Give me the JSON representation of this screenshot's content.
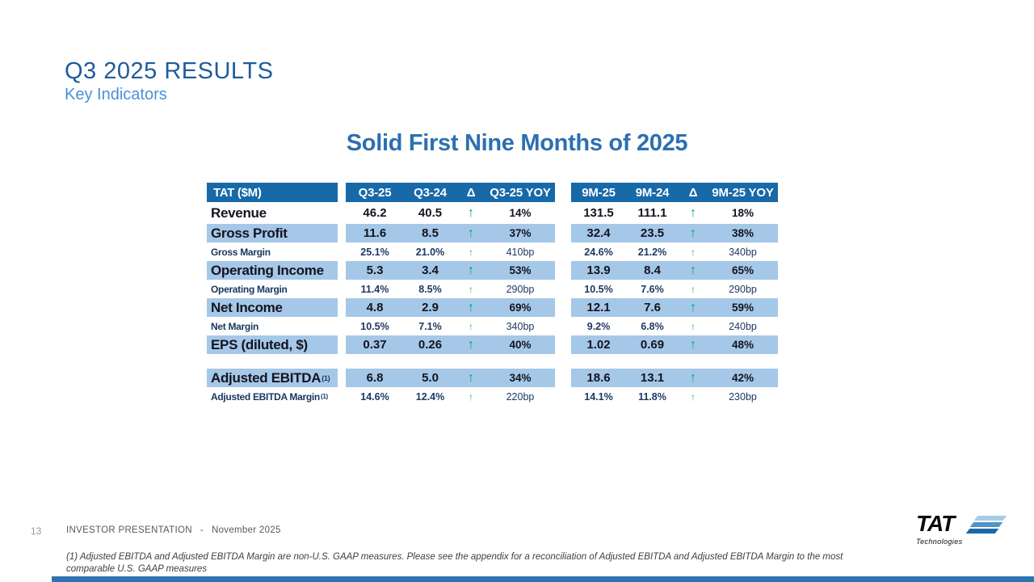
{
  "slide": {
    "title": "Q3 2025 RESULTS",
    "subtitle": "Key Indicators",
    "heading": "Solid First Nine Months of 2025"
  },
  "table": {
    "label_header": "TAT ($M)",
    "q3_headers": [
      "Q3-25",
      "Q3-24",
      "Δ",
      "Q3-25 YOY"
    ],
    "nm_headers": [
      "9M-25",
      "9M-24",
      "Δ",
      "9M-25 YOY"
    ],
    "rows": [
      {
        "label": "Revenue",
        "sup": "",
        "emphasis": "major",
        "shaded": false,
        "q3": [
          "46.2",
          "40.5",
          "↑",
          "14%"
        ],
        "nm": [
          "131.5",
          "111.1",
          "↑",
          "18%"
        ]
      },
      {
        "label": "Gross Profit",
        "sup": "",
        "emphasis": "major",
        "shaded": true,
        "q3": [
          "11.6",
          "8.5",
          "↑",
          "37%"
        ],
        "nm": [
          "32.4",
          "23.5",
          "↑",
          "38%"
        ]
      },
      {
        "label": "Gross Margin",
        "sup": "",
        "emphasis": "minor",
        "shaded": false,
        "q3": [
          "25.1%",
          "21.0%",
          "↑",
          "410bp"
        ],
        "nm": [
          "24.6%",
          "21.2%",
          "↑",
          "340bp"
        ]
      },
      {
        "label": "Operating Income",
        "sup": "",
        "emphasis": "major",
        "shaded": true,
        "q3": [
          "5.3",
          "3.4",
          "↑",
          "53%"
        ],
        "nm": [
          "13.9",
          "8.4",
          "↑",
          "65%"
        ]
      },
      {
        "label": "Operating Margin",
        "sup": "",
        "emphasis": "minor",
        "shaded": false,
        "q3": [
          "11.4%",
          "8.5%",
          "↑",
          "290bp"
        ],
        "nm": [
          "10.5%",
          "7.6%",
          "↑",
          "290bp"
        ]
      },
      {
        "label": "Net Income",
        "sup": "",
        "emphasis": "major",
        "shaded": true,
        "q3": [
          "4.8",
          "2.9",
          "↑",
          "69%"
        ],
        "nm": [
          "12.1",
          "7.6",
          "↑",
          "59%"
        ]
      },
      {
        "label": "Net Margin",
        "sup": "",
        "emphasis": "minor",
        "shaded": false,
        "q3": [
          "10.5%",
          "7.1%",
          "↑",
          "340bp"
        ],
        "nm": [
          "9.2%",
          "6.8%",
          "↑",
          "240bp"
        ]
      },
      {
        "label": "EPS (diluted, $)",
        "sup": "",
        "emphasis": "major",
        "shaded": true,
        "q3": [
          "0.37",
          "0.26",
          "↑",
          "40%"
        ],
        "nm": [
          "1.02",
          "0.69",
          "↑",
          "48%"
        ]
      },
      {
        "spacer": true
      },
      {
        "label": "Adjusted EBITDA",
        "sup": "(1)",
        "emphasis": "major",
        "shaded": true,
        "q3": [
          "6.8",
          "5.0",
          "↑",
          "34%"
        ],
        "nm": [
          "18.6",
          "13.1",
          "↑",
          "42%"
        ]
      },
      {
        "label": "Adjusted EBITDA Margin",
        "sup": "(1)",
        "emphasis": "minor",
        "shaded": false,
        "q3": [
          "14.6%",
          "12.4%",
          "↑",
          "220bp"
        ],
        "nm": [
          "14.1%",
          "11.8%",
          "↑",
          "230bp"
        ]
      }
    ]
  },
  "footer": {
    "page_number": "13",
    "presentation_label": "INVESTOR PRESENTATION",
    "separator": "-",
    "date": "November 2025",
    "footnote": "(1) Adjusted EBITDA and Adjusted EBITDA Margin are non-U.S. GAAP measures. Please see the appendix for a reconciliation of Adjusted EBITDA and Adjusted EBITDA Margin to the most comparable U.S. GAAP measures"
  },
  "logo": {
    "name": "TAT",
    "tagline": "Technologies"
  },
  "colors": {
    "header_bg": "#1769A8",
    "row_shade": "#A5C8E8",
    "title_blue": "#1E5C9B",
    "subtitle_blue": "#4A90D9",
    "heading_blue": "#2D6FB0",
    "arrow_green": "#00A859",
    "navy_text": "#1F3864",
    "bottom_bar": "#2E74B5"
  }
}
